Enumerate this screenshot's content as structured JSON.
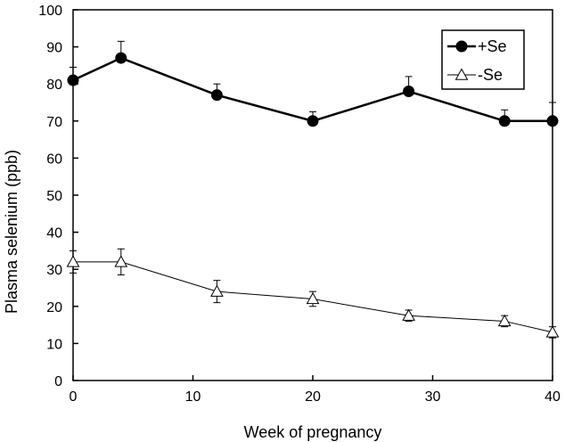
{
  "chart_data": {
    "type": "line",
    "xlabel": "Week of pregnancy",
    "ylabel": "Plasma selenium (ppb)",
    "xlim": [
      0,
      40
    ],
    "ylim": [
      0,
      100
    ],
    "x_ticks": [
      0,
      10,
      20,
      30,
      40
    ],
    "y_ticks": [
      0,
      10,
      20,
      30,
      40,
      50,
      60,
      70,
      80,
      90,
      100
    ],
    "grid": false,
    "legend_position": "top-right",
    "series": [
      {
        "name": "+Se",
        "marker": "filled-circle",
        "color": "#000000",
        "x": [
          0,
          4,
          12,
          20,
          28,
          36,
          40
        ],
        "y": [
          81,
          87,
          77,
          70,
          78,
          70,
          70
        ],
        "error": [
          3.5,
          4.5,
          3,
          2.5,
          4,
          3,
          5
        ]
      },
      {
        "name": "-Se",
        "marker": "open-triangle",
        "color": "#000000",
        "x": [
          0,
          4,
          12,
          20,
          28,
          36,
          40
        ],
        "y": [
          32,
          32,
          24,
          22,
          17.5,
          16,
          13
        ],
        "error": [
          3,
          3.5,
          3,
          2,
          1.5,
          1.5,
          1.5
        ]
      }
    ]
  }
}
